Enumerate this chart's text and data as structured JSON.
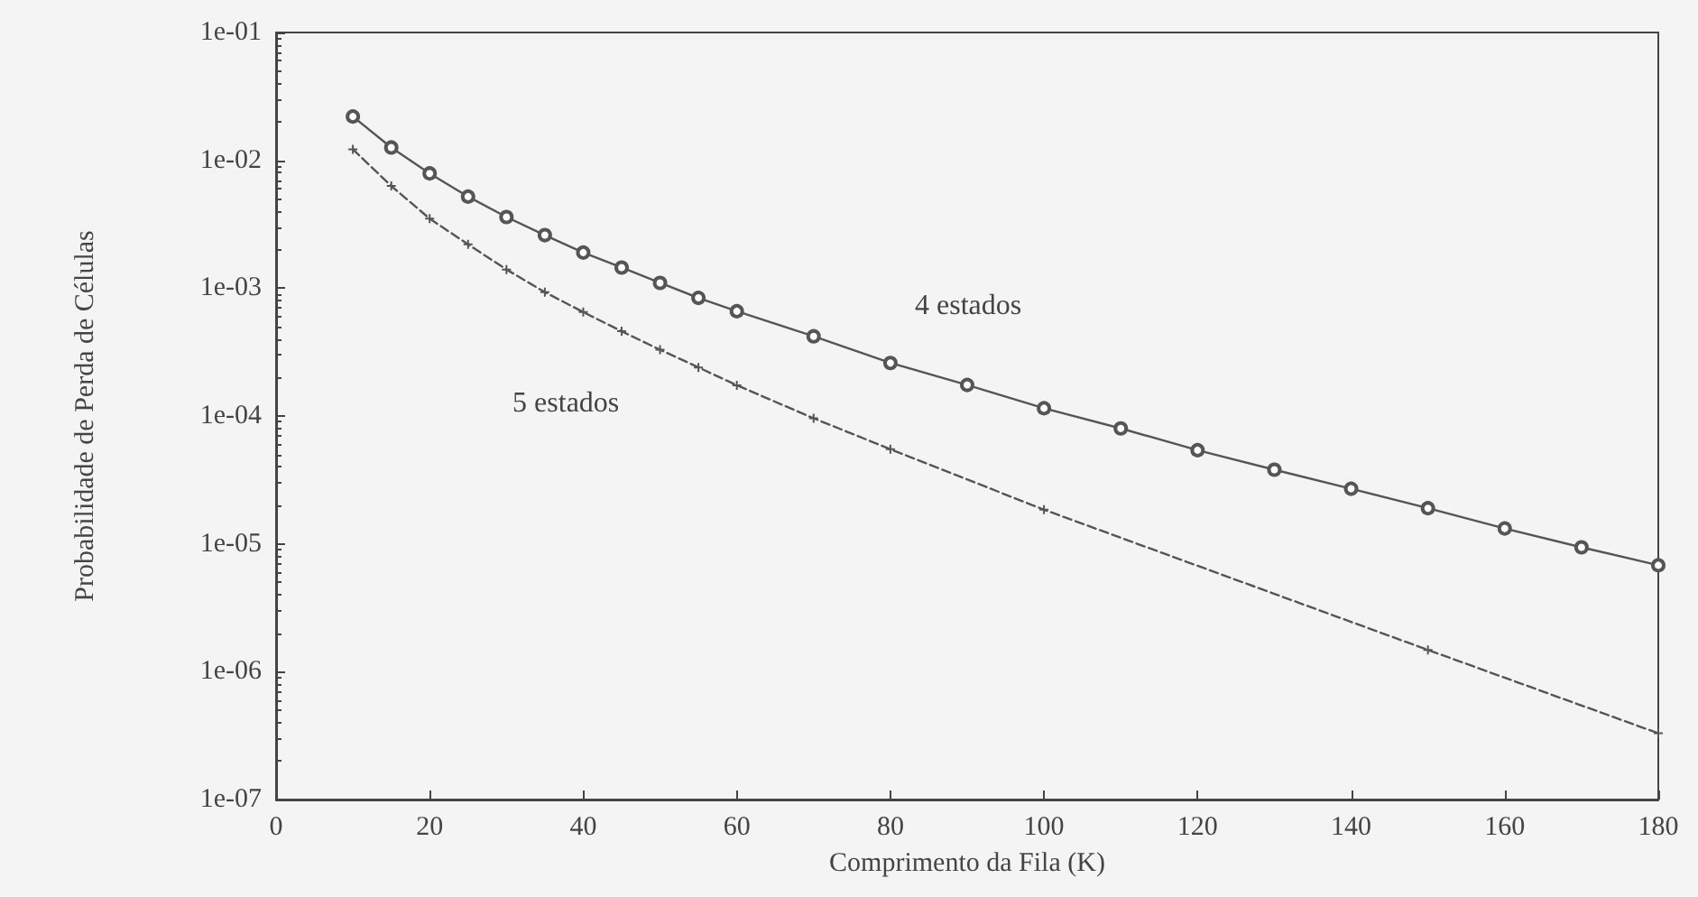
{
  "chart_data": {
    "type": "line",
    "xlabel": "Comprimento da Fila (K)",
    "ylabel": "Probabilidade de Perda de Células",
    "log": "y",
    "grid": false,
    "legend": false,
    "xlim": [
      0,
      180
    ],
    "xticks": [
      0,
      20,
      40,
      60,
      80,
      100,
      120,
      140,
      160,
      180
    ],
    "ylim": [
      1e-07,
      0.1
    ],
    "yticks": [
      {
        "value": 1e-07,
        "label": "1e-07"
      },
      {
        "value": 1e-06,
        "label": "1e-06"
      },
      {
        "value": 1e-05,
        "label": "1e-05"
      },
      {
        "value": 0.0001,
        "label": "1e-04"
      },
      {
        "value": 0.001,
        "label": "1e-03"
      },
      {
        "value": 0.01,
        "label": "1e-02"
      },
      {
        "value": 0.1,
        "label": "1e-01"
      }
    ],
    "series": [
      {
        "name": "4 estados",
        "color": "#555555",
        "marker": "circle",
        "line_style": "solid",
        "x": [
          10,
          15,
          20,
          25,
          30,
          35,
          40,
          45,
          50,
          55,
          60,
          70,
          80,
          90,
          100,
          110,
          120,
          130,
          140,
          150,
          160,
          170,
          180
        ],
        "values": [
          0.022,
          0.0126,
          0.0079,
          0.0052,
          0.0036,
          0.0026,
          0.0019,
          0.00145,
          0.0011,
          0.00084,
          0.00066,
          0.00042,
          0.00026,
          0.000175,
          0.000115,
          8e-05,
          5.4e-05,
          3.8e-05,
          2.7e-05,
          1.9e-05,
          1.32e-05,
          9.4e-06,
          6.8e-06
        ]
      },
      {
        "name": "5 estados",
        "color": "#555555",
        "marker": "cross",
        "line_style": "dashed",
        "x": [
          10,
          15,
          20,
          25,
          30,
          35,
          40,
          45,
          50,
          55,
          60,
          70,
          80,
          100,
          150,
          180
        ],
        "values": [
          0.0122,
          0.0063,
          0.0035,
          0.0022,
          0.0014,
          0.00093,
          0.00065,
          0.00046,
          0.00033,
          0.00024,
          0.000174,
          9.6e-05,
          5.5e-05,
          1.85e-05,
          1.48e-06,
          3.3e-07
        ]
      }
    ]
  }
}
